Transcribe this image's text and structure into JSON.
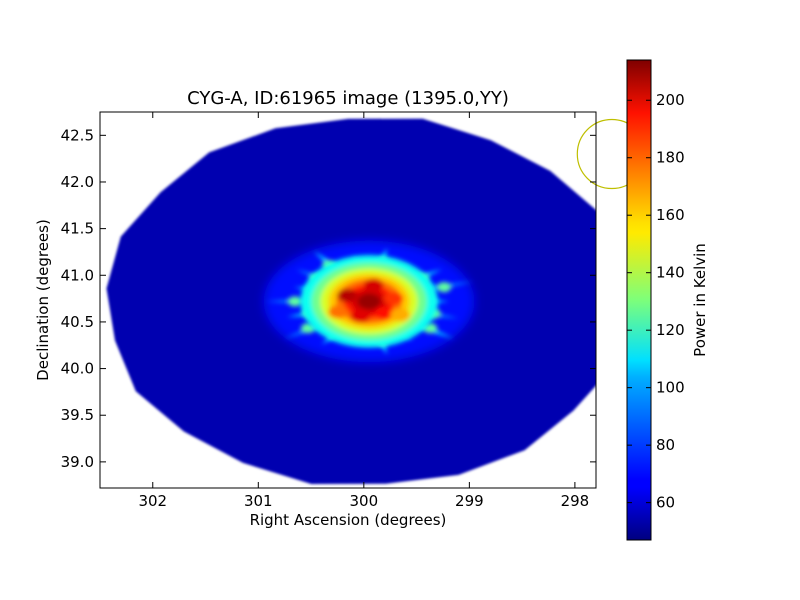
{
  "chart_data": {
    "type": "heatmap",
    "title": "CYG-A, ID:61965 image (1395.0,YY)",
    "xlabel": "Right Ascension (degrees)",
    "ylabel": "Declination (degrees)",
    "xlim": [
      302.5,
      297.8
    ],
    "ylim": [
      38.72,
      42.75
    ],
    "x_ticks": [
      302,
      301,
      300,
      299,
      298
    ],
    "x_tick_labels": [
      "302",
      "301",
      "300",
      "299",
      "298"
    ],
    "y_ticks": [
      39.0,
      39.5,
      40.0,
      40.5,
      41.0,
      41.5,
      42.0,
      42.5
    ],
    "y_tick_labels": [
      "39.0",
      "39.5",
      "40.0",
      "40.5",
      "41.0",
      "41.5",
      "42.0",
      "42.5"
    ],
    "colormap": "jet",
    "colorbar": {
      "label": "Power in Kelvin",
      "range": [
        47,
        214
      ],
      "ticks": [
        60,
        80,
        100,
        120,
        140,
        160,
        180,
        200
      ],
      "tick_labels": [
        "60",
        "80",
        "100",
        "120",
        "140",
        "160",
        "180",
        "200"
      ]
    },
    "map": {
      "background_level": 55,
      "footprint_center": [
        299.97,
        40.72
      ],
      "footprint_radius_ra": 2.47,
      "footprint_radius_dec": 1.98,
      "source_center": [
        299.95,
        40.72
      ],
      "source_peak": 210,
      "source_radius_ra": 0.42,
      "source_radius_dec": 0.32,
      "source_arms": 18,
      "source_arm_extent_ra": 1.05,
      "source_arm_extent_dec": 0.62
    },
    "beam_circle": {
      "center": [
        297.65,
        42.3
      ],
      "radius_dec": 0.37,
      "color": "#bfbf00"
    }
  }
}
